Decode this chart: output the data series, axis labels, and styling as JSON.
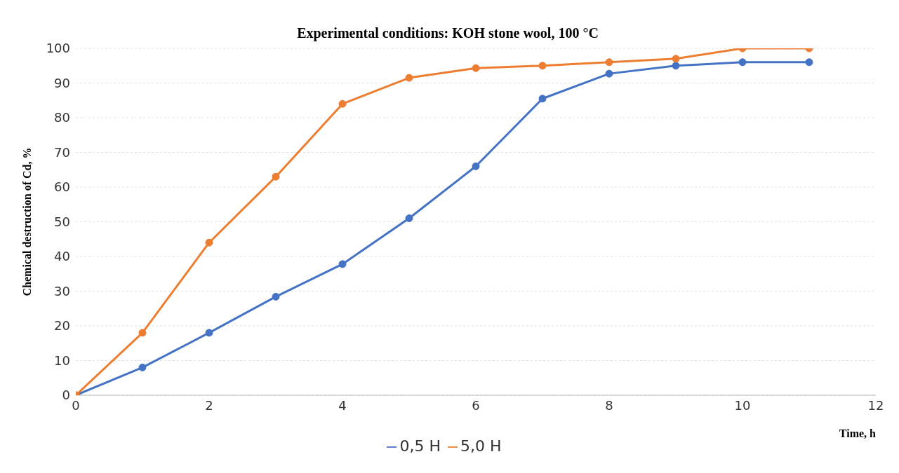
{
  "chart_data": {
    "type": "line",
    "title": "Experimental conditions: KOH stone wool, 100 °C",
    "xlabel": "Time, h",
    "ylabel": "Chemical destruction of Cd, %",
    "x": [
      0,
      1,
      2,
      3,
      4,
      5,
      6,
      7,
      8,
      9,
      10,
      11
    ],
    "series": [
      {
        "name": "0,5 H",
        "color": "#4472c4",
        "values": [
          0,
          8,
          18,
          28.4,
          37.8,
          51,
          66,
          85.5,
          92.7,
          95,
          96,
          96
        ]
      },
      {
        "name": "5,0 H",
        "color": "#ed7d31",
        "values": [
          0,
          18,
          44,
          63,
          84,
          91.5,
          94.3,
          95,
          96,
          97,
          100,
          100
        ]
      }
    ],
    "xlim": [
      0,
      12
    ],
    "xticks": [
      0,
      2,
      4,
      6,
      8,
      10,
      12
    ],
    "ylim": [
      0,
      100
    ],
    "yticks": [
      0,
      10,
      20,
      30,
      40,
      50,
      60,
      70,
      80,
      90,
      100
    ],
    "grid": "y",
    "legend": "bottom",
    "marker": "circle",
    "line_style": "solid"
  }
}
